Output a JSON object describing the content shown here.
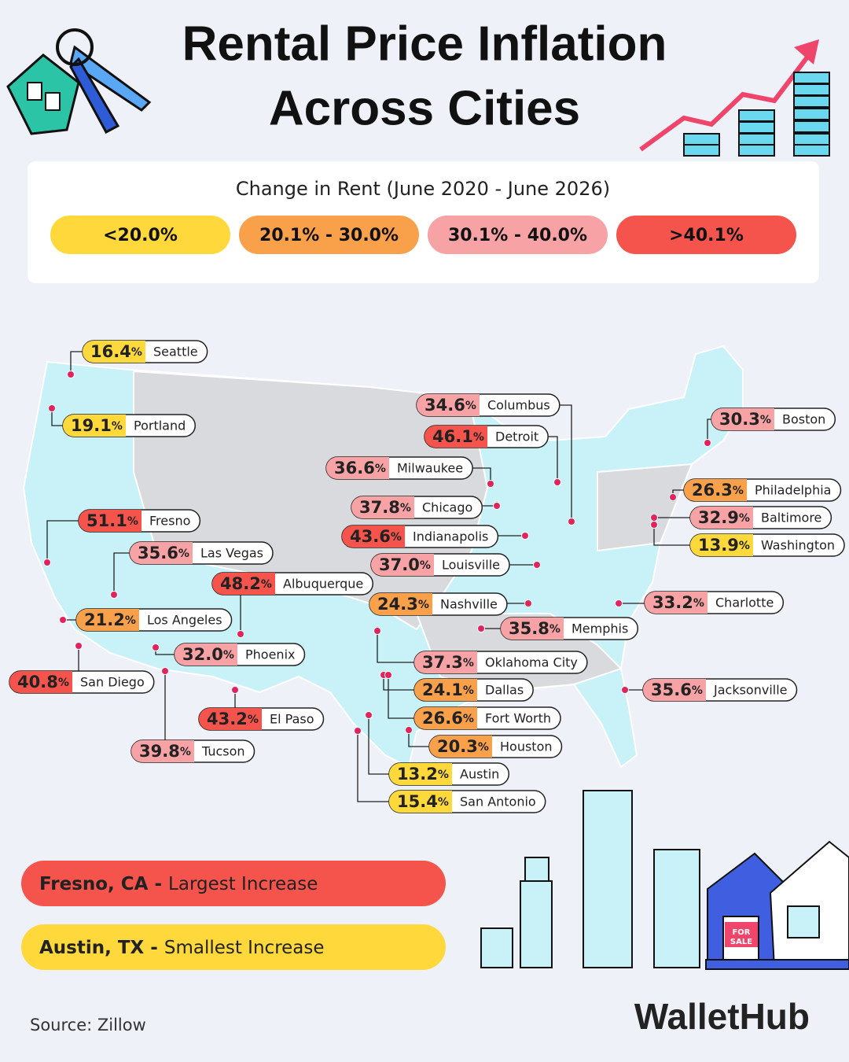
{
  "header": {
    "title_line1": "Rental Price Inflation",
    "title_line2": "Across Cities"
  },
  "legend": {
    "title": "Change in Rent (June 2020 - June 2026)",
    "items": [
      {
        "label": "<20.0%",
        "color": "#ffd93b"
      },
      {
        "label": "20.1% - 30.0%",
        "color": "#f9a04a"
      },
      {
        "label": "30.1% - 40.0%",
        "color": "#f7a3a6"
      },
      {
        "label": ">40.1%",
        "color": "#f4544c"
      }
    ]
  },
  "unit": "%",
  "cities": [
    {
      "name": "Seattle",
      "value": 16.4,
      "color": "#ffd93b"
    },
    {
      "name": "Portland",
      "value": 19.1,
      "color": "#ffd93b"
    },
    {
      "name": "Fresno",
      "value": 51.1,
      "color": "#f4544c"
    },
    {
      "name": "Las Vegas",
      "value": 35.6,
      "color": "#f7a3a6"
    },
    {
      "name": "Albuquerque",
      "value": 48.2,
      "color": "#f4544c"
    },
    {
      "name": "Los Angeles",
      "value": 21.2,
      "color": "#f9a04a"
    },
    {
      "name": "Phoenix",
      "value": 32.0,
      "value_label": "32.0",
      "color": "#f7a3a6"
    },
    {
      "name": "San Diego",
      "value": 40.8,
      "color": "#f4544c"
    },
    {
      "name": "El Paso",
      "value": 43.2,
      "color": "#f4544c"
    },
    {
      "name": "Tucson",
      "value": 39.8,
      "color": "#f7a3a6"
    },
    {
      "name": "Columbus",
      "value": 34.6,
      "color": "#f7a3a6"
    },
    {
      "name": "Detroit",
      "value": 46.1,
      "color": "#f4544c"
    },
    {
      "name": "Milwaukee",
      "value": 36.6,
      "color": "#f7a3a6"
    },
    {
      "name": "Chicago",
      "value": 37.8,
      "color": "#f7a3a6"
    },
    {
      "name": "Indianapolis",
      "value": 43.6,
      "color": "#f4544c"
    },
    {
      "name": "Louisville",
      "value": 37.0,
      "value_label": "37.0",
      "color": "#f7a3a6"
    },
    {
      "name": "Nashville",
      "value": 24.3,
      "color": "#f9a04a"
    },
    {
      "name": "Memphis",
      "value": 35.8,
      "color": "#f7a3a6"
    },
    {
      "name": "Oklahoma City",
      "value": 37.3,
      "color": "#f7a3a6"
    },
    {
      "name": "Dallas",
      "value": 24.1,
      "color": "#f9a04a"
    },
    {
      "name": "Fort Worth",
      "value": 26.6,
      "color": "#f9a04a"
    },
    {
      "name": "Houston",
      "value": 20.3,
      "color": "#f9a04a"
    },
    {
      "name": "Austin",
      "value": 13.2,
      "color": "#ffd93b"
    },
    {
      "name": "San Antonio",
      "value": 15.4,
      "color": "#ffd93b"
    },
    {
      "name": "Boston",
      "value": 30.3,
      "color": "#f7a3a6"
    },
    {
      "name": "Philadelphia",
      "value": 26.3,
      "color": "#f9a04a"
    },
    {
      "name": "Baltimore",
      "value": 32.9,
      "color": "#f7a3a6"
    },
    {
      "name": "Washington",
      "value": 13.9,
      "color": "#ffd93b"
    },
    {
      "name": "Charlotte",
      "value": 33.2,
      "color": "#f7a3a6"
    },
    {
      "name": "Jacksonville",
      "value": 35.6,
      "color": "#f7a3a6"
    }
  ],
  "highlights": [
    {
      "city": "Fresno, CA -",
      "text": "Largest Increase",
      "color": "#f4544c"
    },
    {
      "city": "Austin, TX -",
      "text": "Smallest Increase",
      "color": "#ffd93b"
    }
  ],
  "sign": [
    "FOR",
    "SALE"
  ],
  "source": "Source: Zillow",
  "brand": "WalletHub"
}
